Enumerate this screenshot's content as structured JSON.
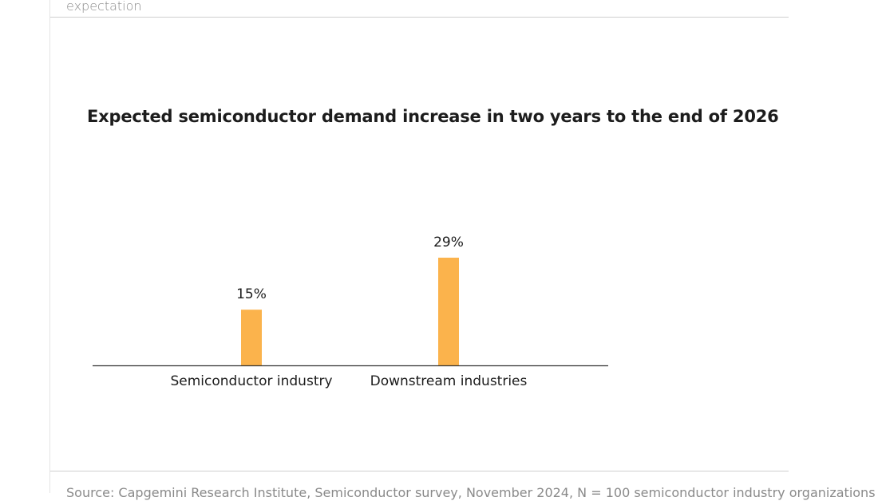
{
  "page": {
    "top_caption": "expectation",
    "source_note": "Source: Capgemini Research Institute, Semiconductor survey, November 2024, N = 100 semiconductor industry organizations"
  },
  "colors": {
    "bar": "#FBB34C",
    "axis": "#333333",
    "text": "#1c1c1c"
  },
  "chart_data": {
    "type": "bar",
    "title": "Expected semiconductor demand increase in two years to the end of 2026",
    "categories": [
      "Semiconductor industry",
      "Downstream industries"
    ],
    "values": [
      15,
      29
    ],
    "data_labels": [
      "15%",
      "29%"
    ],
    "xlabel": "",
    "ylabel": "",
    "ylim": [
      0,
      30
    ],
    "grid": false,
    "legend": "none"
  }
}
